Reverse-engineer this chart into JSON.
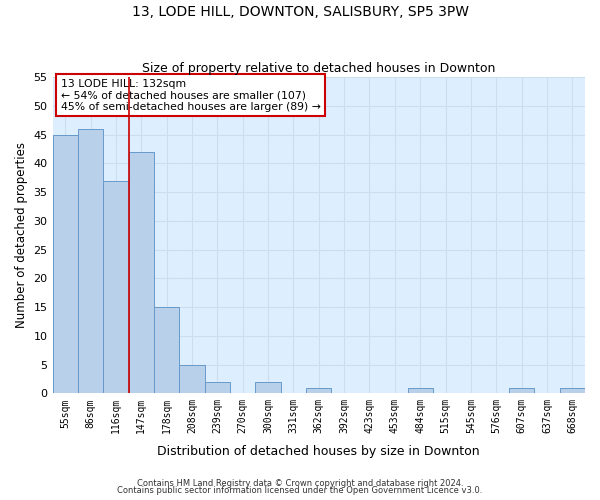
{
  "title": "13, LODE HILL, DOWNTON, SALISBURY, SP5 3PW",
  "subtitle": "Size of property relative to detached houses in Downton",
  "xlabel": "Distribution of detached houses by size in Downton",
  "ylabel": "Number of detached properties",
  "bar_labels": [
    "55sqm",
    "86sqm",
    "116sqm",
    "147sqm",
    "178sqm",
    "208sqm",
    "239sqm",
    "270sqm",
    "300sqm",
    "331sqm",
    "362sqm",
    "392sqm",
    "423sqm",
    "453sqm",
    "484sqm",
    "515sqm",
    "545sqm",
    "576sqm",
    "607sqm",
    "637sqm",
    "668sqm"
  ],
  "bar_values": [
    45,
    46,
    37,
    42,
    15,
    5,
    2,
    0,
    2,
    0,
    1,
    0,
    0,
    0,
    1,
    0,
    0,
    0,
    1,
    0,
    1
  ],
  "bar_color": "#b8d0ea",
  "bar_edge_color": "#6699cc",
  "grid_color": "#ccddf0",
  "background_color": "#ddeeff",
  "vline_color": "#cc0000",
  "annotation_line1": "13 LODE HILL: 132sqm",
  "annotation_line2": "← 54% of detached houses are smaller (107)",
  "annotation_line3": "45% of semi-detached houses are larger (89) →",
  "footer_line1": "Contains HM Land Registry data © Crown copyright and database right 2024.",
  "footer_line2": "Contains public sector information licensed under the Open Government Licence v3.0.",
  "ylim": [
    0,
    55
  ],
  "yticks": [
    0,
    5,
    10,
    15,
    20,
    25,
    30,
    35,
    40,
    45,
    50,
    55
  ],
  "vline_bar_index": 3
}
